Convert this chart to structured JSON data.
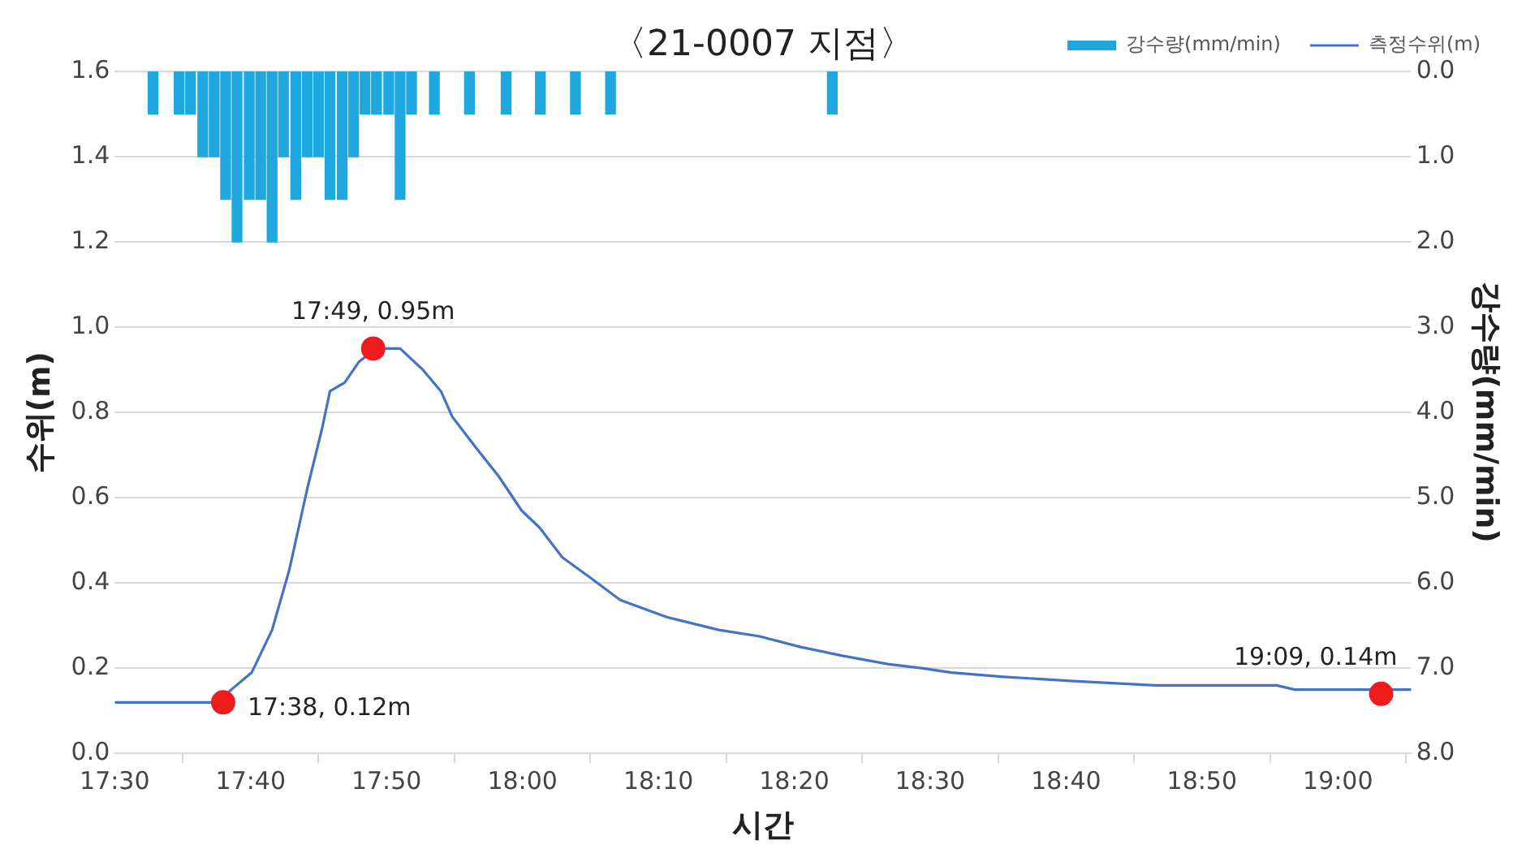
{
  "chart_data": {
    "type": "line",
    "title": "〈21-0007 지점〉",
    "xlabel": "시간",
    "ylabel": "수위(m)",
    "y2label": "강수량(mm/min)",
    "xlim": [
      17.5,
      19.09
    ],
    "xticks": [
      {
        "value": 17.5,
        "label": "17:30"
      },
      {
        "value": 17.6667,
        "label": "17:40"
      },
      {
        "value": 17.8333,
        "label": "17:50"
      },
      {
        "value": 18,
        "label": "18:00"
      },
      {
        "value": 18.1667,
        "label": "18:10"
      },
      {
        "value": 18.3333,
        "label": "18:20"
      },
      {
        "value": 18.5,
        "label": "18:30"
      },
      {
        "value": 18.6667,
        "label": "18:40"
      },
      {
        "value": 18.8333,
        "label": "18:50"
      },
      {
        "value": 19,
        "label": "19:00"
      }
    ],
    "ylim": [
      0,
      1.6
    ],
    "yticks": [
      {
        "value": 0,
        "label": "0.0"
      },
      {
        "value": 0.2,
        "label": "0.2"
      },
      {
        "value": 0.4,
        "label": "0.4"
      },
      {
        "value": 0.6,
        "label": "0.6"
      },
      {
        "value": 0.8,
        "label": "0.8"
      },
      {
        "value": 1,
        "label": "1.0"
      },
      {
        "value": 1.2,
        "label": "1.2"
      },
      {
        "value": 1.4,
        "label": "1.4"
      },
      {
        "value": 1.6,
        "label": "1.6"
      }
    ],
    "y2lim": [
      8,
      0
    ],
    "y2ticks": [
      {
        "value": 0,
        "label": "0.0"
      },
      {
        "value": 1,
        "label": "1.0"
      },
      {
        "value": 2,
        "label": "2.0"
      },
      {
        "value": 3,
        "label": "3.0"
      },
      {
        "value": 4,
        "label": "4.0"
      },
      {
        "value": 5,
        "label": "5.0"
      },
      {
        "value": 6,
        "label": "6.0"
      },
      {
        "value": 7,
        "label": "7.0"
      },
      {
        "value": 8,
        "label": "8.0"
      }
    ],
    "grid": "y",
    "legend": "top right",
    "marker": "none",
    "line_style": "solid",
    "series": [
      {
        "type": "bar",
        "name": "강수량(mm/min)",
        "color": "#1fa8e0",
        "axis": "y2",
        "x": [
          17.547,
          17.579,
          17.593,
          17.608,
          17.622,
          17.636,
          17.65,
          17.665,
          17.679,
          17.693,
          17.707,
          17.722,
          17.736,
          17.75,
          17.764,
          17.779,
          17.793,
          17.807,
          17.821,
          17.836,
          17.85,
          17.864,
          17.892,
          17.935,
          17.98,
          18.022,
          18.065,
          18.108,
          18.38
        ],
        "values": [
          0.5,
          0.5,
          0.5,
          1,
          1,
          1.5,
          2,
          1.5,
          1.5,
          2,
          1,
          1.5,
          1,
          1,
          1.5,
          1.5,
          1,
          0.5,
          0.5,
          0.5,
          1.5,
          0.5,
          0.5,
          0.5,
          0.5,
          0.5,
          0.5,
          0.5,
          0.5
        ]
      },
      {
        "name": "측정수위(m)",
        "color": "#4472c4",
        "x": [
          17.5,
          17.628,
          17.643,
          17.668,
          17.693,
          17.714,
          17.736,
          17.754,
          17.764,
          17.782,
          17.8,
          17.821,
          17.85,
          17.878,
          17.9,
          17.914,
          17.942,
          17.971,
          17.999,
          18.021,
          18.049,
          18.085,
          18.12,
          18.177,
          18.241,
          18.291,
          18.341,
          18.391,
          18.448,
          18.491,
          18.526,
          18.59,
          18.676,
          18.776,
          18.925,
          18.947,
          19.09
        ],
        "values": [
          0.12,
          0.12,
          0.15,
          0.19,
          0.29,
          0.43,
          0.62,
          0.76,
          0.85,
          0.87,
          0.92,
          0.95,
          0.95,
          0.9,
          0.85,
          0.79,
          0.72,
          0.65,
          0.57,
          0.53,
          0.46,
          0.41,
          0.36,
          0.32,
          0.29,
          0.275,
          0.25,
          0.23,
          0.21,
          0.2,
          0.19,
          0.18,
          0.17,
          0.16,
          0.16,
          0.15,
          0.15
        ]
      },
      {
        "type": "scatter",
        "color": "#ee1c1c",
        "marker": "circle",
        "x": [
          17.633,
          17.817,
          19.053
        ],
        "values": [
          0.12,
          0.95,
          0.14
        ]
      }
    ],
    "annotations": [
      {
        "text": "17:38, 0.12m",
        "x": 17.633,
        "y": 0.12
      },
      {
        "text": "17:49, 0.95m",
        "x": 17.817,
        "y": 0.95
      },
      {
        "text": "19:09, 0.14m",
        "x": 19.053,
        "y": 0.14
      }
    ]
  }
}
